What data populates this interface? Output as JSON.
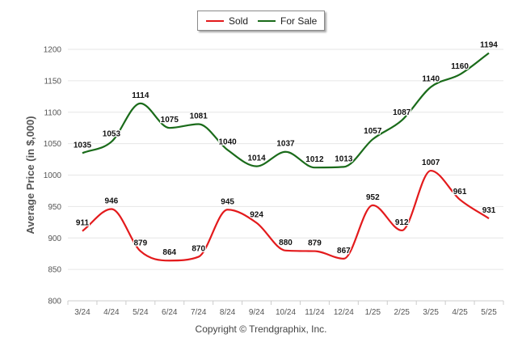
{
  "copyright": "Copyright © Trendgraphix, Inc.",
  "legend": {
    "sold_label": "Sold",
    "for_sale_label": "For Sale"
  },
  "chart_data": {
    "type": "line",
    "title": "",
    "xlabel": "",
    "ylabel": "Average Price (in $,000)",
    "ylim": [
      800,
      1200
    ],
    "yticks": [
      800,
      850,
      900,
      950,
      1000,
      1050,
      1100,
      1150,
      1200
    ],
    "grid": true,
    "legend_position": "top-center",
    "categories": [
      "3/24",
      "4/24",
      "5/24",
      "6/24",
      "7/24",
      "8/24",
      "9/24",
      "10/24",
      "11/24",
      "12/24",
      "1/25",
      "2/25",
      "3/25",
      "4/25",
      "5/25"
    ],
    "series": [
      {
        "name": "Sold",
        "color": "#e31a1c",
        "values": [
          911,
          946,
          879,
          864,
          870,
          945,
          924,
          880,
          879,
          867,
          952,
          912,
          1007,
          961,
          931
        ]
      },
      {
        "name": "For Sale",
        "color": "#1a6b1a",
        "values": [
          1035,
          1053,
          1114,
          1075,
          1081,
          1040,
          1014,
          1037,
          1012,
          1013,
          1057,
          1087,
          1140,
          1160,
          1194
        ]
      }
    ]
  }
}
